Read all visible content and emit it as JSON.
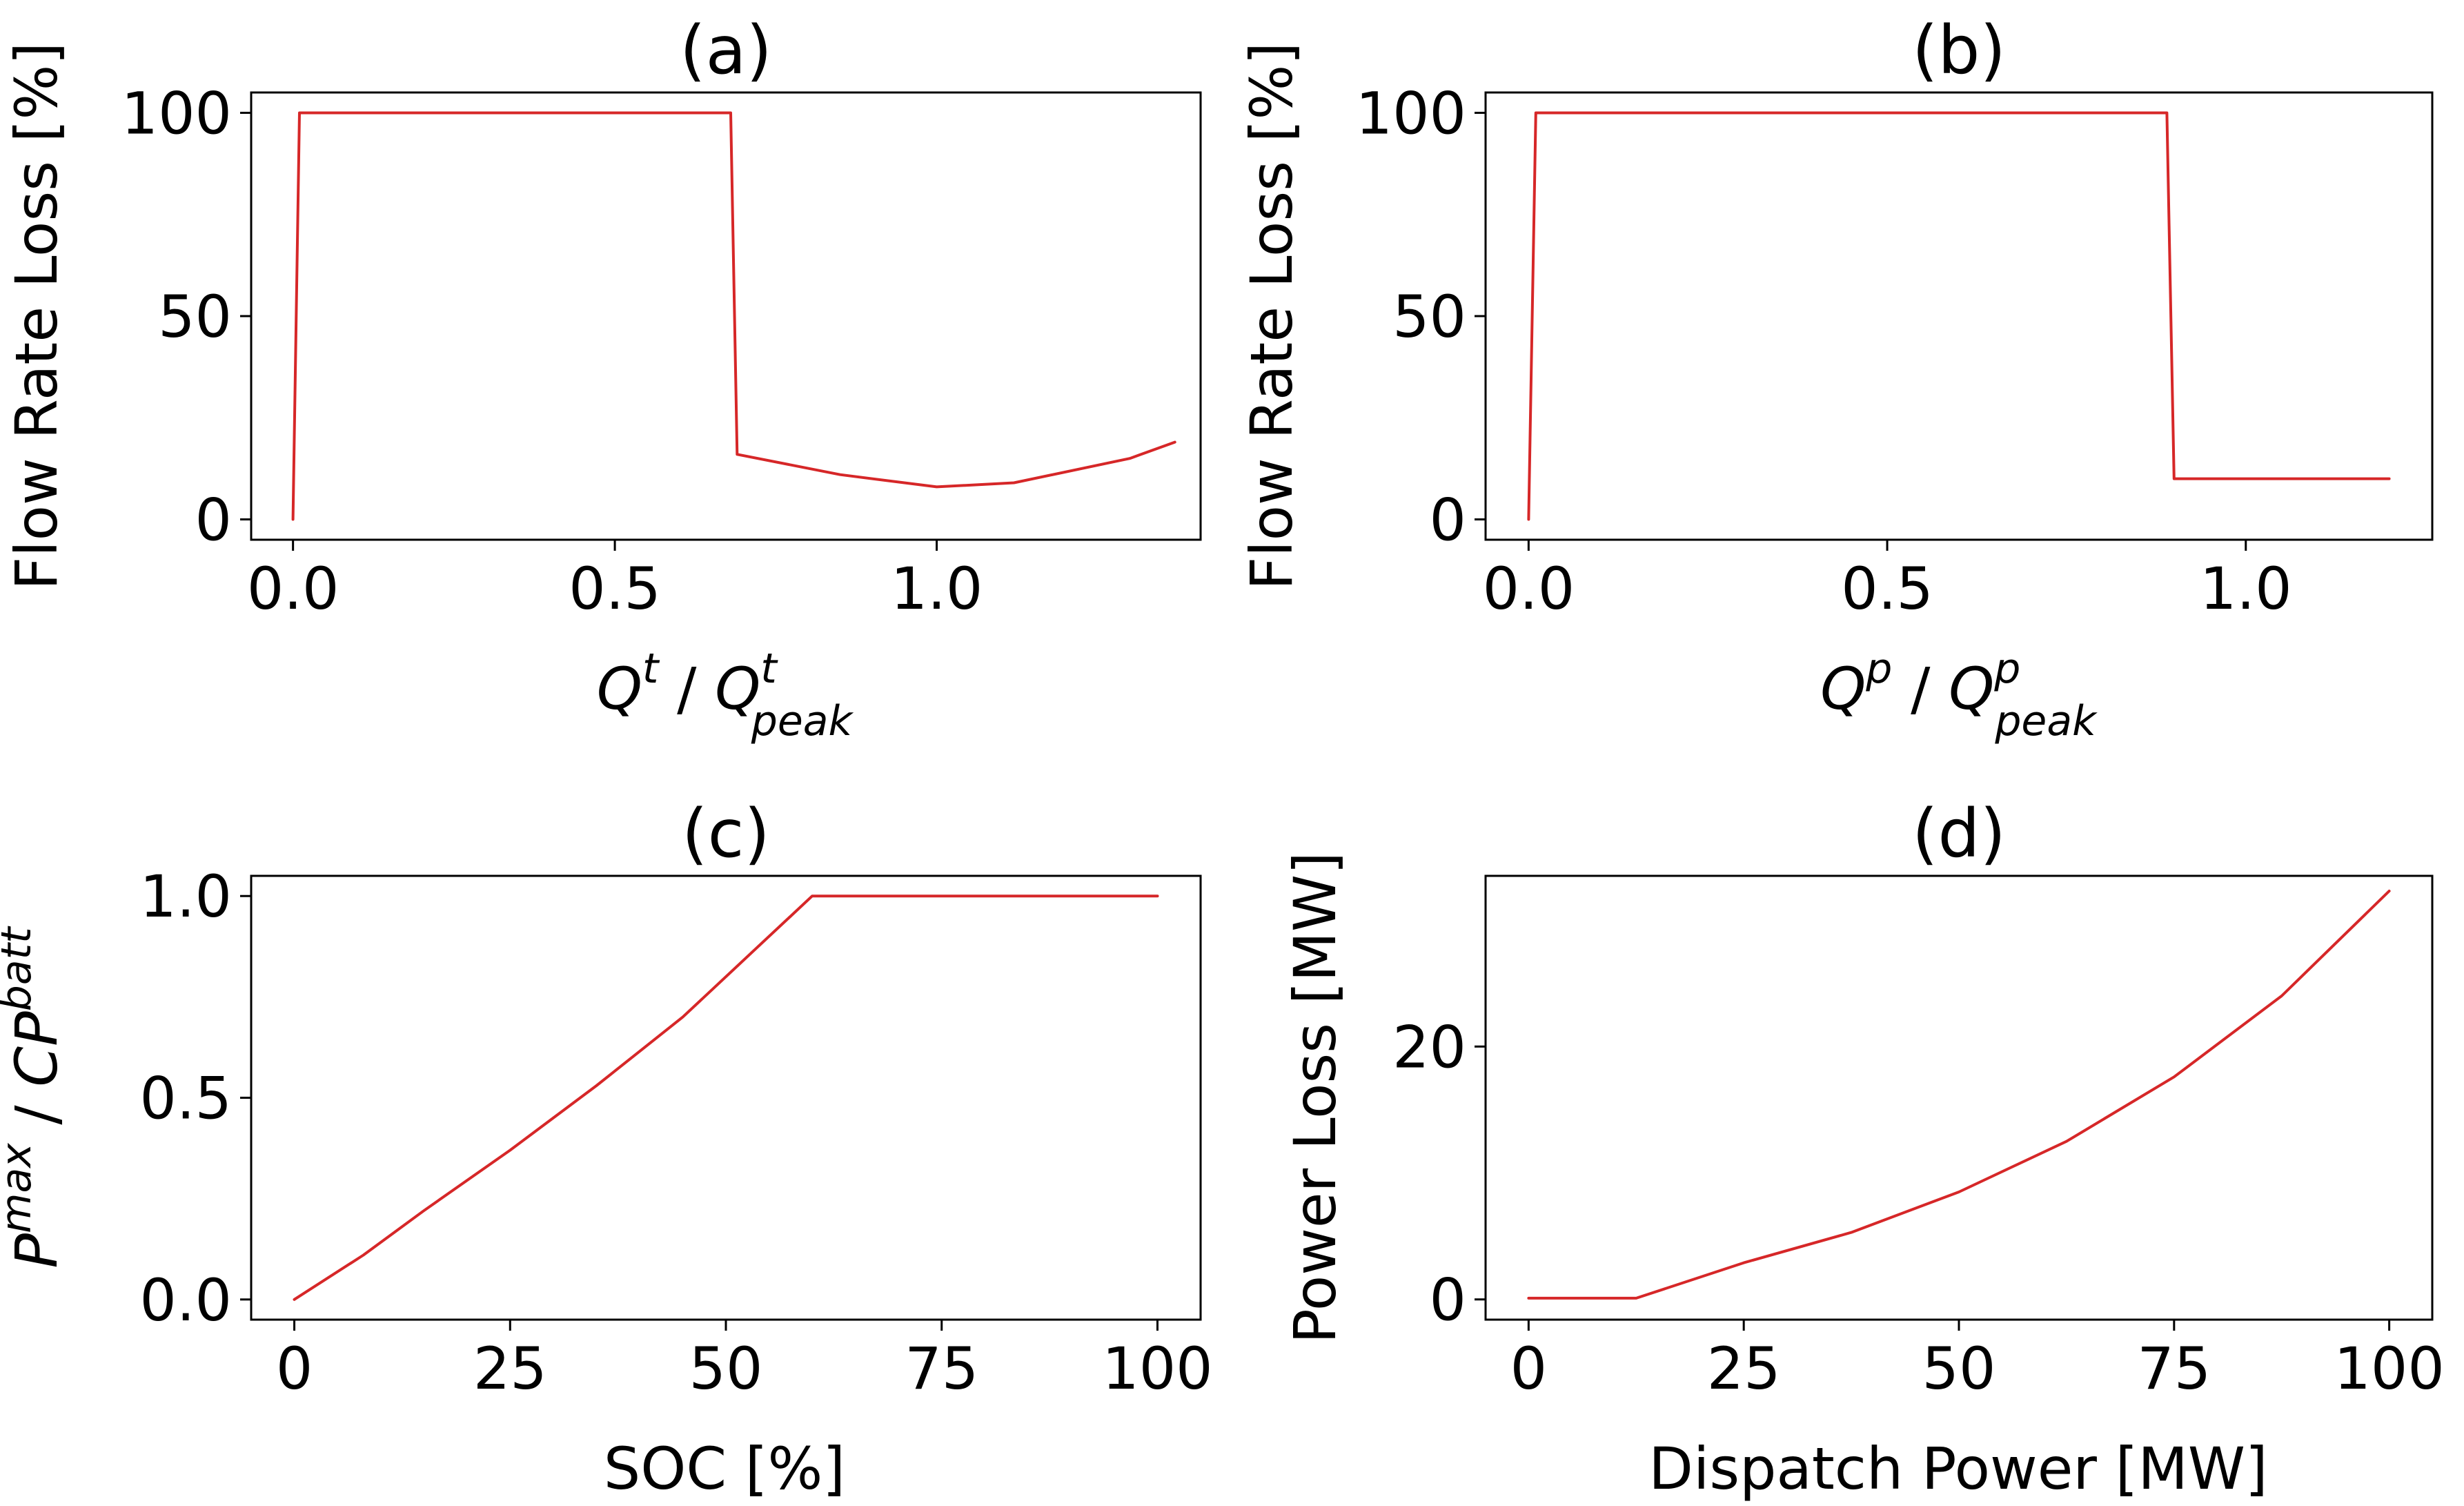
{
  "figure": {
    "line_color": "#d62728"
  },
  "chart_data": [
    {
      "id": "a",
      "type": "line",
      "title": "(a)",
      "xlabel": {
        "base": "Q",
        "sup": "t",
        "sep": " / ",
        "base2": "Q",
        "sup2": "t",
        "sub2": "peak"
      },
      "ylabel": "Flow Rate Loss [%]",
      "xlim": [
        -0.065,
        1.41
      ],
      "ylim": [
        -5,
        105
      ],
      "xticks": [
        0.0,
        0.5,
        1.0
      ],
      "xtick_labels": [
        "0.0",
        "0.5",
        "1.0"
      ],
      "yticks": [
        0,
        50,
        100
      ],
      "ytick_labels": [
        "0",
        "50",
        "100"
      ],
      "series": [
        {
          "name": "flow_rate_loss",
          "x": [
            0.0,
            0.01,
            0.68,
            0.69,
            0.85,
            1.0,
            1.12,
            1.3,
            1.37
          ],
          "y": [
            0,
            100,
            100,
            16,
            11,
            8,
            9,
            15,
            19
          ]
        }
      ]
    },
    {
      "id": "b",
      "type": "line",
      "title": "(b)",
      "xlabel": {
        "base": "Q",
        "sup": "p",
        "sep": " / ",
        "base2": "Q",
        "sup2": "p",
        "sub2": "peak"
      },
      "ylabel": "Flow Rate Loss [%]",
      "xlim": [
        -0.06,
        1.26
      ],
      "ylim": [
        -5,
        105
      ],
      "xticks": [
        0.0,
        0.5,
        1.0
      ],
      "xtick_labels": [
        "0.0",
        "0.5",
        "1.0"
      ],
      "yticks": [
        0,
        50,
        100
      ],
      "ytick_labels": [
        "0",
        "50",
        "100"
      ],
      "series": [
        {
          "name": "flow_rate_loss",
          "x": [
            0.0,
            0.01,
            0.89,
            0.9,
            1.2
          ],
          "y": [
            0,
            100,
            100,
            10,
            10
          ]
        }
      ]
    },
    {
      "id": "c",
      "type": "line",
      "title": "(c)",
      "xlabel": {
        "text": "SOC [%]"
      },
      "ylabel": {
        "base": "P",
        "sup": "max",
        "sep": " / ",
        "base2": "CP",
        "sup2": "batt"
      },
      "xlim": [
        -5,
        105
      ],
      "ylim": [
        -0.05,
        1.05
      ],
      "xticks": [
        0,
        25,
        50,
        75,
        100
      ],
      "xtick_labels": [
        "0",
        "25",
        "50",
        "75",
        "100"
      ],
      "yticks": [
        0.0,
        0.5,
        1.0
      ],
      "ytick_labels": [
        "0.0",
        "0.5",
        "1.0"
      ],
      "series": [
        {
          "name": "pmax_ratio",
          "x": [
            0,
            8,
            15,
            25,
            35,
            45,
            53,
            60,
            100
          ],
          "y": [
            0.0,
            0.11,
            0.22,
            0.37,
            0.53,
            0.7,
            0.86,
            1.0,
            1.0
          ]
        }
      ]
    },
    {
      "id": "d",
      "type": "line",
      "title": "(d)",
      "xlabel": {
        "text": "Dispatch Power [MW]"
      },
      "ylabel": "Power Loss [MW]",
      "xlim": [
        -5,
        105
      ],
      "ylim": [
        -1.6,
        33.5
      ],
      "xticks": [
        0,
        25,
        50,
        75,
        100
      ],
      "xtick_labels": [
        "0",
        "25",
        "50",
        "75",
        "100"
      ],
      "yticks": [
        0,
        20
      ],
      "ytick_labels": [
        "0",
        "20"
      ],
      "series": [
        {
          "name": "power_loss",
          "x": [
            0,
            12.5,
            25,
            37.5,
            50,
            62.5,
            75,
            87.5,
            100
          ],
          "y": [
            0.1,
            0.1,
            2.9,
            5.3,
            8.5,
            12.5,
            17.6,
            24.0,
            32.3
          ]
        }
      ]
    }
  ]
}
